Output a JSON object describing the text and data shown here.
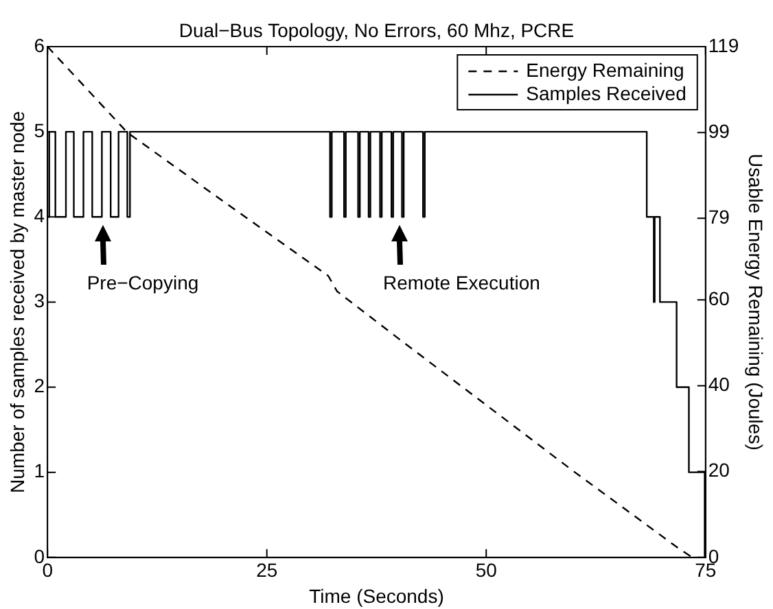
{
  "chart_data": {
    "type": "line",
    "title": "Dual−Bus Topology, No Errors, 60 Mhz, PCRE",
    "xlabel": "Time (Seconds)",
    "ylabel": "Number of samples received by master node",
    "y2label": "Usable Energy Remaining (Joules)",
    "xlim": [
      0,
      75
    ],
    "xticks": [
      0,
      25,
      50,
      75
    ],
    "ylim": [
      0,
      6
    ],
    "yticks": [
      0,
      1,
      2,
      3,
      4,
      5,
      6
    ],
    "y2lim": [
      0,
      119
    ],
    "y2ticks": [
      0,
      20,
      40,
      60,
      79,
      99,
      119
    ],
    "grid": false,
    "legend": "top right",
    "marker": "none",
    "series": [
      {
        "name": "Energy Remaining",
        "type": "line",
        "axis": "y2",
        "color": "#000000",
        "line_style": "dashed",
        "x": [
          0,
          9.1,
          20,
          30,
          32,
          33,
          40,
          50,
          60,
          68,
          72,
          73.5
        ],
        "values": [
          119,
          99,
          83,
          68.5,
          65.6,
          62,
          51,
          35.5,
          20,
          8,
          2,
          0
        ]
      },
      {
        "name": "Samples Received",
        "type": "step",
        "axis": "y",
        "color": "#000000",
        "line_style": "solid",
        "x": [
          0,
          0.2,
          0.9,
          2.1,
          3.0,
          4.1,
          5.1,
          6.2,
          7.2,
          8.1,
          9.1,
          9.4,
          32.2,
          32.4,
          33.8,
          34.0,
          35.4,
          35.6,
          36.6,
          36.8,
          37.9,
          38.1,
          39.2,
          39.4,
          40.4,
          40.6,
          42.8,
          43.0,
          68.3,
          69.1,
          69.2,
          69.8,
          71.7,
          73.1,
          74.9,
          75
        ],
        "values": [
          4,
          5,
          4,
          5,
          4,
          5,
          4,
          5,
          4,
          5,
          4,
          5,
          4,
          5,
          4,
          5,
          4,
          5,
          4,
          5,
          4,
          5,
          4,
          5,
          4,
          5,
          4,
          5,
          4,
          3,
          4,
          3,
          2,
          1,
          0,
          0
        ]
      }
    ],
    "annotations": [
      "Pre−Copying",
      "Remote Execution"
    ]
  }
}
